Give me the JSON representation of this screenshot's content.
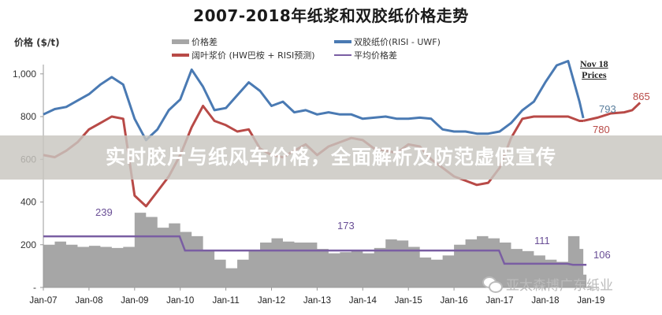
{
  "title": "2007-2018年纸浆和双胶纸价格走势",
  "y_axis_label": "价格 ($/t)",
  "legend": [
    {
      "label": "价格差",
      "color": "#a6a6a6",
      "kind": "bar"
    },
    {
      "label": "双胶纸价(RISI - UWF)",
      "color": "#4a7ab3",
      "kind": "line"
    },
    {
      "label": "阔叶浆价 (HW巴桉 + RISI预测)",
      "color": "#b84a47",
      "kind": "line"
    },
    {
      "label": "平均价格差",
      "color": "#7a5ea3",
      "kind": "line"
    }
  ],
  "annotations": {
    "nov_title_line1": "Nov 18",
    "nov_title_line2": "Prices",
    "uwf_last": "793",
    "hw_last": "780",
    "hw_forecast_end": "865",
    "avg_1": "239",
    "avg_2": "173",
    "avg_3": "111",
    "avg_4": "106"
  },
  "banner": {
    "text": "实时胶片与纸风车价格，全面解析及防范虚假宣传"
  },
  "watermark": {
    "text": "亚太森博广东纸业"
  },
  "colors": {
    "uwf": "#4a7ab3",
    "hw": "#b84a47",
    "spread": "#a6a6a6",
    "avg": "#7a5ea3",
    "axis": "#999999"
  },
  "chart_data": {
    "type": "line",
    "title": "2007-2018年纸浆和双胶纸价格走势",
    "xlabel": "",
    "ylabel": "价格 ($/t)",
    "ylim": [
      0,
      1100
    ],
    "yticks": [
      "-",
      "200",
      "400",
      "600",
      "800",
      "1,000"
    ],
    "ytick_values": [
      0,
      200,
      400,
      600,
      800,
      1000
    ],
    "x_ticks": [
      "Jan-07",
      "Jan-08",
      "Jan-09",
      "Jan-10",
      "Jan-11",
      "Jan-12",
      "Jan-13",
      "Jan-14",
      "Jan-15",
      "Jan-16",
      "Jan-17",
      "Jan-18",
      "Jan-19"
    ],
    "grid": false,
    "legend_position": "top",
    "x": [
      "2007-01",
      "2007-04",
      "2007-07",
      "2007-10",
      "2008-01",
      "2008-04",
      "2008-07",
      "2008-10",
      "2009-01",
      "2009-04",
      "2009-07",
      "2009-10",
      "2010-01",
      "2010-04",
      "2010-07",
      "2010-10",
      "2011-01",
      "2011-04",
      "2011-07",
      "2011-10",
      "2012-01",
      "2012-04",
      "2012-07",
      "2012-10",
      "2013-01",
      "2013-04",
      "2013-07",
      "2013-10",
      "2014-01",
      "2014-04",
      "2014-07",
      "2014-10",
      "2015-01",
      "2015-04",
      "2015-07",
      "2015-10",
      "2016-01",
      "2016-04",
      "2016-07",
      "2016-10",
      "2017-01",
      "2017-04",
      "2017-07",
      "2017-10",
      "2018-01",
      "2018-04",
      "2018-07",
      "2018-10",
      "2018-11"
    ],
    "series": [
      {
        "name": "双胶纸价(RISI - UWF)",
        "kind": "line",
        "color": "#4a7ab3",
        "values": [
          810,
          835,
          845,
          875,
          905,
          950,
          985,
          950,
          790,
          690,
          740,
          830,
          880,
          1020,
          940,
          830,
          840,
          900,
          960,
          920,
          850,
          870,
          820,
          830,
          810,
          820,
          810,
          810,
          790,
          795,
          800,
          790,
          790,
          795,
          790,
          740,
          730,
          730,
          720,
          720,
          730,
          770,
          830,
          870,
          960,
          1040,
          1060,
          870,
          793
        ]
      },
      {
        "name": "阔叶浆价 (HW巴桉 + RISI预测)",
        "kind": "line",
        "color": "#b84a47",
        "values": [
          620,
          610,
          640,
          680,
          740,
          770,
          800,
          790,
          430,
          380,
          450,
          520,
          620,
          750,
          850,
          780,
          760,
          730,
          740,
          650,
          620,
          610,
          640,
          670,
          620,
          660,
          680,
          700,
          690,
          650,
          640,
          630,
          670,
          660,
          600,
          560,
          520,
          500,
          480,
          490,
          560,
          700,
          790,
          800,
          800,
          800,
          800,
          780,
          780
        ],
        "forecast_end": 865
      },
      {
        "name": "价格差",
        "kind": "bar",
        "color": "#a6a6a6",
        "values": [
          200,
          215,
          200,
          190,
          195,
          190,
          185,
          190,
          350,
          330,
          280,
          300,
          260,
          240,
          170,
          130,
          90,
          130,
          170,
          210,
          230,
          215,
          210,
          210,
          180,
          160,
          165,
          175,
          160,
          185,
          225,
          220,
          190,
          140,
          130,
          150,
          200,
          225,
          240,
          230,
          210,
          180,
          170,
          150,
          130,
          120,
          240,
          180,
          60
        ]
      },
      {
        "name": "平均价格差",
        "kind": "line",
        "color": "#7a5ea3",
        "segments": [
          {
            "from": "2007-01",
            "to": "2009-12",
            "value": 239
          },
          {
            "from": "2010-01",
            "to": "2016-12",
            "value": 173
          },
          {
            "from": "2017-01",
            "to": "2018-06",
            "value": 111
          },
          {
            "from": "2018-07",
            "to": "2018-11",
            "value": 106
          }
        ]
      }
    ],
    "annotations": [
      "239",
      "173",
      "111",
      "106",
      "793",
      "780",
      "865",
      "Nov 18 Prices"
    ]
  }
}
